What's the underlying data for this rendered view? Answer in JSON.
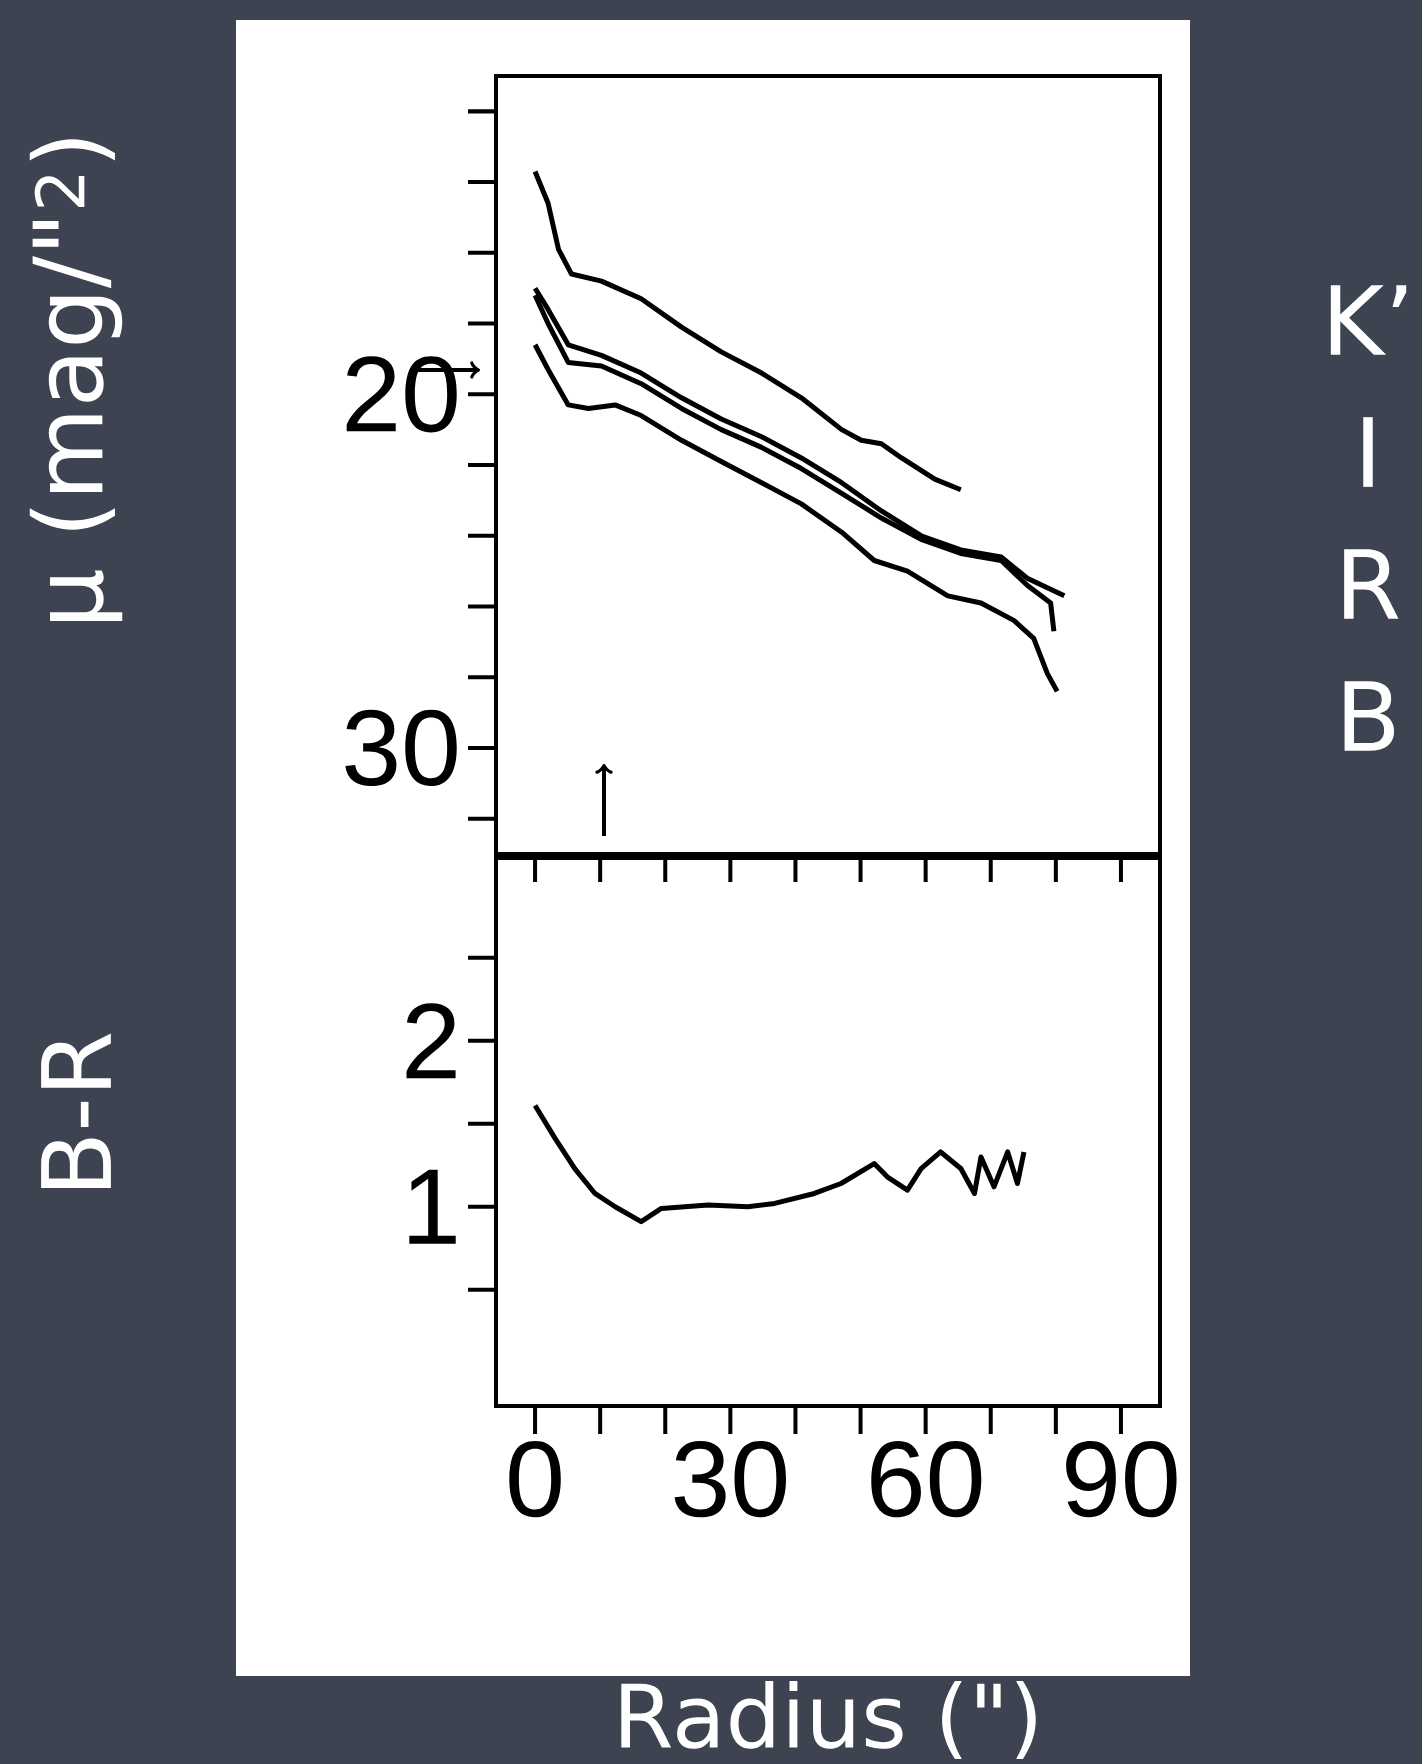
{
  "chart_data": [
    {
      "type": "line",
      "ylabel": "μ (mag/\"$^{2}$)",
      "xlim": [
        -6,
        96
      ],
      "ylim": [
        33,
        11
      ],
      "xticks": [
        0,
        {
          "value": 10,
          "label": null
        },
        {
          "value": 20,
          "label": null
        },
        30,
        {
          "value": 40,
          "label": null
        },
        {
          "value": 50,
          "label": null
        },
        60,
        {
          "value": 70,
          "label": null
        },
        {
          "value": 80,
          "label": null
        },
        90
      ],
      "yticks": [
        {
          "value": 12,
          "label": null
        },
        {
          "value": 14,
          "label": null
        },
        {
          "value": 16,
          "label": null
        },
        {
          "value": 18,
          "label": null
        },
        20,
        {
          "value": 22,
          "label": null
        },
        {
          "value": 24,
          "label": null
        },
        {
          "value": 26,
          "label": null
        },
        {
          "value": 28,
          "label": null
        },
        30,
        {
          "value": 32,
          "label": null
        }
      ],
      "tick_labels": "y",
      "legend": "right",
      "series": [
        {
          "name": "K’",
          "color": "#000000",
          "x": [
            0,
            2.0,
            3.6,
            5.6,
            10.2,
            16.3,
            22.5,
            28.6,
            34.8,
            40.9,
            47.1,
            50.1,
            53.2,
            56.3,
            61.4,
            65.4
          ],
          "values": [
            13.7,
            14.6,
            15.9,
            16.6,
            16.8,
            17.3,
            18.1,
            18.8,
            19.4,
            20.1,
            21.0,
            21.3,
            21.4,
            21.8,
            22.4,
            22.7
          ]
        },
        {
          "name": "I",
          "color": "#000000",
          "x": [
            0,
            2.0,
            5.1,
            10.2,
            16.3,
            22.5,
            28.6,
            34.8,
            40.9,
            47.1,
            53.2,
            59.3,
            65.4,
            71.6,
            75.6,
            81.3
          ],
          "values": [
            17.0,
            17.6,
            18.6,
            18.9,
            19.4,
            20.1,
            20.7,
            21.2,
            21.8,
            22.5,
            23.3,
            24.0,
            24.4,
            24.6,
            25.2,
            25.7
          ]
        },
        {
          "name": "R",
          "color": "#000000",
          "x": [
            0,
            2.0,
            5.1,
            10.2,
            16.3,
            22.5,
            28.6,
            34.8,
            40.9,
            47.1,
            53.2,
            59.3,
            65.4,
            71.6,
            75.6,
            79.2,
            79.7
          ],
          "values": [
            17.2,
            18.0,
            19.1,
            19.2,
            19.7,
            20.4,
            21.0,
            21.5,
            22.1,
            22.8,
            23.5,
            24.1,
            24.5,
            24.7,
            25.4,
            25.9,
            26.7
          ]
        },
        {
          "name": "B",
          "color": "#000000",
          "x": [
            0,
            2.0,
            5.1,
            8.2,
            12.3,
            16.3,
            22.5,
            28.6,
            34.8,
            40.9,
            47.1,
            52.1,
            57.2,
            63.4,
            68.5,
            73.6,
            76.6,
            78.7,
            80.2
          ],
          "values": [
            18.6,
            19.3,
            20.3,
            20.4,
            20.3,
            20.6,
            21.3,
            21.9,
            22.5,
            23.1,
            23.9,
            24.7,
            25.0,
            25.7,
            25.9,
            26.4,
            26.9,
            27.9,
            28.4
          ]
        }
      ]
    },
    {
      "type": "line",
      "ylabel": "B-R",
      "xlabel": "Radius (\")",
      "xlim": [
        -6,
        96
      ],
      "ylim": [
        -0.2,
        3.1
      ],
      "xticks": [
        0,
        {
          "value": 10,
          "label": null
        },
        {
          "value": 20,
          "label": null
        },
        30,
        {
          "value": 40,
          "label": null
        },
        {
          "value": 50,
          "label": null
        },
        60,
        {
          "value": 70,
          "label": null
        },
        {
          "value": 80,
          "label": null
        },
        90
      ],
      "yticks": [
        {
          "value": 0.5,
          "label": null
        },
        1,
        {
          "value": 1.5,
          "label": null
        },
        2,
        {
          "value": 2.5,
          "label": null
        }
      ],
      "series": [
        {
          "color": "#000000",
          "x": [
            0,
            3.1,
            6.1,
            9.2,
            12.3,
            16.3,
            19.4,
            26.6,
            32.7,
            36.8,
            42.9,
            47.0,
            52.1,
            54.1,
            57.2,
            59.3,
            62.3,
            65.4,
            67.5,
            68.5,
            70.5,
            72.6,
            74.1,
            75.1
          ],
          "values": [
            1.61,
            1.41,
            1.23,
            1.08,
            1.0,
            0.91,
            0.99,
            1.01,
            1.0,
            1.02,
            1.08,
            1.14,
            1.26,
            1.18,
            1.1,
            1.23,
            1.33,
            1.23,
            1.08,
            1.3,
            1.12,
            1.33,
            1.14,
            1.33
          ]
        }
      ]
    }
  ]
}
